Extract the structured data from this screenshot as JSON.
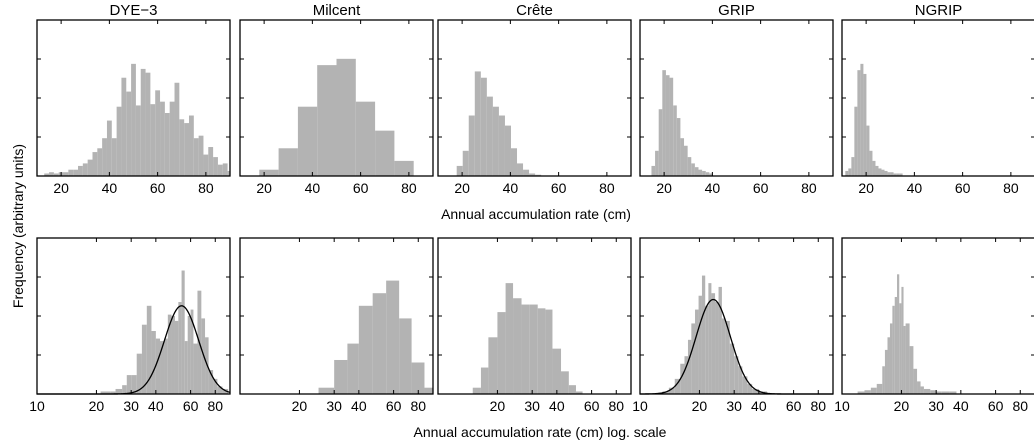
{
  "figure": {
    "ylabel": "Frequency (arbitrary units)",
    "top_xlabel": "Annual accumulation rate (cm)",
    "bottom_xlabel": "Annual accumulation rate (cm) log. scale"
  },
  "chart_data": [
    {
      "type": "bar",
      "title": "DYE−3",
      "row": "top",
      "scale": "linear",
      "xlim": [
        10,
        90
      ],
      "xticks": [
        20,
        40,
        60,
        80
      ],
      "bin_width": 2,
      "bins": [
        [
          14,
          0.02
        ],
        [
          16,
          0.03
        ],
        [
          18,
          0.02
        ],
        [
          20,
          0.03
        ],
        [
          22,
          0.03
        ],
        [
          24,
          0.05
        ],
        [
          26,
          0.05
        ],
        [
          28,
          0.08
        ],
        [
          30,
          0.1
        ],
        [
          32,
          0.13
        ],
        [
          34,
          0.19
        ],
        [
          36,
          0.22
        ],
        [
          38,
          0.3
        ],
        [
          40,
          0.44
        ],
        [
          42,
          0.3
        ],
        [
          44,
          0.55
        ],
        [
          46,
          0.78
        ],
        [
          48,
          0.67
        ],
        [
          50,
          0.89
        ],
        [
          52,
          0.56
        ],
        [
          54,
          0.85
        ],
        [
          56,
          0.82
        ],
        [
          58,
          0.57
        ],
        [
          60,
          0.68
        ],
        [
          62,
          0.59
        ],
        [
          64,
          0.5
        ],
        [
          66,
          0.59
        ],
        [
          68,
          0.74
        ],
        [
          70,
          0.45
        ],
        [
          72,
          0.42
        ],
        [
          74,
          0.48
        ],
        [
          76,
          0.3
        ],
        [
          78,
          0.32
        ],
        [
          80,
          0.17
        ],
        [
          82,
          0.23
        ],
        [
          84,
          0.15
        ],
        [
          86,
          0.09
        ],
        [
          88,
          0.1
        ],
        [
          90,
          0.04
        ]
      ],
      "fit": null
    },
    {
      "type": "bar",
      "title": "Milcent",
      "row": "top",
      "scale": "linear",
      "xlim": [
        10,
        90
      ],
      "xticks": [
        20,
        40,
        60,
        80
      ],
      "bin_width": 8,
      "bins": [
        [
          22,
          0.05
        ],
        [
          30,
          0.22
        ],
        [
          38,
          0.55
        ],
        [
          46,
          0.88
        ],
        [
          54,
          0.93
        ],
        [
          62,
          0.59
        ],
        [
          70,
          0.36
        ],
        [
          78,
          0.12
        ]
      ],
      "fit": null
    },
    {
      "type": "bar",
      "title": "Crête",
      "row": "top",
      "scale": "linear",
      "xlim": [
        10,
        90
      ],
      "xticks": [
        20,
        40,
        60,
        80
      ],
      "bin_width": 2.5,
      "bins": [
        [
          19,
          0.08
        ],
        [
          21.5,
          0.2
        ],
        [
          24,
          0.48
        ],
        [
          26.5,
          0.83
        ],
        [
          29,
          0.78
        ],
        [
          31.5,
          0.63
        ],
        [
          34,
          0.55
        ],
        [
          36.5,
          0.48
        ],
        [
          39,
          0.4
        ],
        [
          41.5,
          0.22
        ],
        [
          44,
          0.1
        ],
        [
          46.5,
          0.05
        ],
        [
          49,
          0.02
        ],
        [
          51.5,
          0.01
        ]
      ],
      "fit": null
    },
    {
      "type": "bar",
      "title": "GRIP",
      "row": "top",
      "scale": "linear",
      "xlim": [
        10,
        90
      ],
      "xticks": [
        20,
        40,
        60,
        80
      ],
      "bin_width": 1.5,
      "bins": [
        [
          15.5,
          0.08
        ],
        [
          17,
          0.2
        ],
        [
          18.5,
          0.53
        ],
        [
          20,
          0.84
        ],
        [
          21.5,
          0.8
        ],
        [
          23,
          0.78
        ],
        [
          24.5,
          0.56
        ],
        [
          26,
          0.46
        ],
        [
          27.5,
          0.3
        ],
        [
          29,
          0.24
        ],
        [
          30.5,
          0.15
        ],
        [
          32,
          0.1
        ],
        [
          33.5,
          0.07
        ],
        [
          35,
          0.05
        ],
        [
          36.5,
          0.04
        ],
        [
          38,
          0.03
        ],
        [
          39.5,
          0.02
        ]
      ],
      "fit": null
    },
    {
      "type": "bar",
      "title": "NGRIP",
      "row": "top",
      "scale": "linear",
      "xlim": [
        10,
        90
      ],
      "xticks": [
        20,
        40,
        60,
        80
      ],
      "bin_width": 1.25,
      "bins": [
        [
          12,
          0.04
        ],
        [
          13.25,
          0.06
        ],
        [
          14.5,
          0.15
        ],
        [
          15.75,
          0.55
        ],
        [
          17,
          0.84
        ],
        [
          18.25,
          0.89
        ],
        [
          19.5,
          0.81
        ],
        [
          20.75,
          0.4
        ],
        [
          22,
          0.2
        ],
        [
          23.25,
          0.12
        ],
        [
          24.5,
          0.08
        ],
        [
          25.75,
          0.06
        ],
        [
          27,
          0.05
        ],
        [
          28.25,
          0.04
        ],
        [
          29.5,
          0.03
        ],
        [
          30.75,
          0.03
        ],
        [
          32,
          0.02
        ],
        [
          33.25,
          0.02
        ],
        [
          34.5,
          0.02
        ]
      ],
      "fit": null
    },
    {
      "type": "bar",
      "title": "",
      "row": "bottom",
      "scale": "log",
      "xlim": [
        10,
        95
      ],
      "xticks": [
        10,
        20,
        30,
        40,
        60,
        80
      ],
      "bins": [
        [
          21,
          23.5,
          0.02
        ],
        [
          23.5,
          25,
          0.02
        ],
        [
          25,
          27,
          0.04
        ],
        [
          27,
          28.5,
          0.07
        ],
        [
          28.5,
          30,
          0.15
        ],
        [
          30,
          32,
          0.15
        ],
        [
          32,
          34,
          0.32
        ],
        [
          34,
          36,
          0.55
        ],
        [
          36,
          38,
          0.7
        ],
        [
          38,
          40,
          0.5
        ],
        [
          40,
          42,
          0.44
        ],
        [
          42,
          44,
          0.42
        ],
        [
          44,
          46,
          0.44
        ],
        [
          46,
          48,
          0.63
        ],
        [
          48,
          50,
          0.62
        ],
        [
          50,
          52,
          0.58
        ],
        [
          52,
          54,
          0.73
        ],
        [
          54,
          56,
          0.98
        ],
        [
          56,
          58,
          0.42
        ],
        [
          58,
          60,
          0.62
        ],
        [
          60,
          62,
          0.67
        ],
        [
          62,
          65,
          0.4
        ],
        [
          65,
          68,
          0.82
        ],
        [
          68,
          71,
          0.6
        ],
        [
          71,
          74,
          0.45
        ],
        [
          74,
          78,
          0.19
        ],
        [
          78,
          82,
          0.12
        ],
        [
          82,
          87,
          0.06
        ],
        [
          87,
          93,
          0.04
        ]
      ],
      "fit": {
        "center": 54,
        "log_sigma": 0.2,
        "peak": 0.7
      }
    },
    {
      "type": "bar",
      "title": "",
      "row": "bottom",
      "scale": "log",
      "xlim": [
        10,
        95
      ],
      "xticks": [
        20,
        30,
        40,
        60,
        80
      ],
      "bins": [
        [
          25,
          30,
          0.05
        ],
        [
          30,
          35,
          0.27
        ],
        [
          35,
          40,
          0.4
        ],
        [
          40,
          47,
          0.7
        ],
        [
          47,
          55,
          0.8
        ],
        [
          55,
          64,
          0.9
        ],
        [
          64,
          74,
          0.6
        ],
        [
          74,
          86,
          0.25
        ],
        [
          86,
          95,
          0.05
        ]
      ],
      "fit": null
    },
    {
      "type": "bar",
      "title": "",
      "row": "bottom",
      "scale": "log",
      "xlim": [
        10,
        95
      ],
      "xticks": [
        20,
        30,
        40,
        60,
        80
      ],
      "bins": [
        [
          15,
          16.5,
          0.05
        ],
        [
          16.5,
          18,
          0.21
        ],
        [
          18,
          20,
          0.45
        ],
        [
          20,
          22,
          0.65
        ],
        [
          22,
          24,
          0.88
        ],
        [
          24,
          26.5,
          0.76
        ],
        [
          26.5,
          29,
          0.71
        ],
        [
          29,
          32,
          0.71
        ],
        [
          32,
          35,
          0.68
        ],
        [
          35,
          38,
          0.67
        ],
        [
          38,
          42,
          0.36
        ],
        [
          42,
          46,
          0.18
        ],
        [
          46,
          50,
          0.07
        ],
        [
          50,
          54,
          0.02
        ]
      ],
      "fit": null
    },
    {
      "type": "bar",
      "title": "",
      "row": "bottom",
      "scale": "log",
      "xlim": [
        10,
        95
      ],
      "xticks": [
        10,
        20,
        30,
        40,
        60,
        80
      ],
      "bins": [
        [
          13,
          14,
          0.02
        ],
        [
          14,
          15,
          0.05
        ],
        [
          15,
          16,
          0.12
        ],
        [
          16,
          16.8,
          0.24
        ],
        [
          16.8,
          17.5,
          0.3
        ],
        [
          17.5,
          18.2,
          0.43
        ],
        [
          18.2,
          19,
          0.56
        ],
        [
          19,
          19.8,
          0.67
        ],
        [
          19.8,
          20.6,
          0.78
        ],
        [
          20.6,
          21.4,
          0.94
        ],
        [
          21.4,
          22.2,
          0.7
        ],
        [
          22.2,
          23,
          0.88
        ],
        [
          23,
          24,
          0.8
        ],
        [
          24,
          25,
          0.73
        ],
        [
          25,
          26,
          0.85
        ],
        [
          26,
          27,
          0.6
        ],
        [
          27,
          28.5,
          0.58
        ],
        [
          28.5,
          30,
          0.4
        ],
        [
          30,
          31.5,
          0.3
        ],
        [
          31.5,
          33,
          0.22
        ],
        [
          33,
          35,
          0.14
        ],
        [
          35,
          37,
          0.08
        ],
        [
          37,
          40,
          0.04
        ],
        [
          40,
          44,
          0.02
        ]
      ],
      "fit": {
        "center": 23.5,
        "log_sigma": 0.2,
        "peak": 0.75
      }
    },
    {
      "type": "bar",
      "title": "",
      "row": "bottom",
      "scale": "log",
      "xlim": [
        10,
        95
      ],
      "xticks": [
        10,
        20,
        30,
        40,
        60,
        80
      ],
      "bins": [
        [
          12,
          13,
          0.02
        ],
        [
          13,
          14,
          0.03
        ],
        [
          14,
          15,
          0.05
        ],
        [
          15,
          16,
          0.08
        ],
        [
          16,
          16.5,
          0.22
        ],
        [
          16.5,
          17,
          0.35
        ],
        [
          17,
          17.5,
          0.45
        ],
        [
          17.5,
          18,
          0.56
        ],
        [
          18,
          18.5,
          0.7
        ],
        [
          18.5,
          19,
          0.77
        ],
        [
          19,
          19.5,
          0.95
        ],
        [
          19.5,
          20,
          0.72
        ],
        [
          20,
          20.5,
          0.85
        ],
        [
          20.5,
          21,
          0.54
        ],
        [
          21,
          22,
          0.56
        ],
        [
          22,
          23,
          0.38
        ],
        [
          23,
          24,
          0.2
        ],
        [
          24,
          25,
          0.1
        ],
        [
          25,
          26,
          0.06
        ],
        [
          26,
          28,
          0.04
        ],
        [
          28,
          30,
          0.03
        ],
        [
          30,
          32,
          0.02
        ],
        [
          32,
          35,
          0.02
        ],
        [
          35,
          38,
          0.02
        ]
      ],
      "fit": null
    }
  ]
}
